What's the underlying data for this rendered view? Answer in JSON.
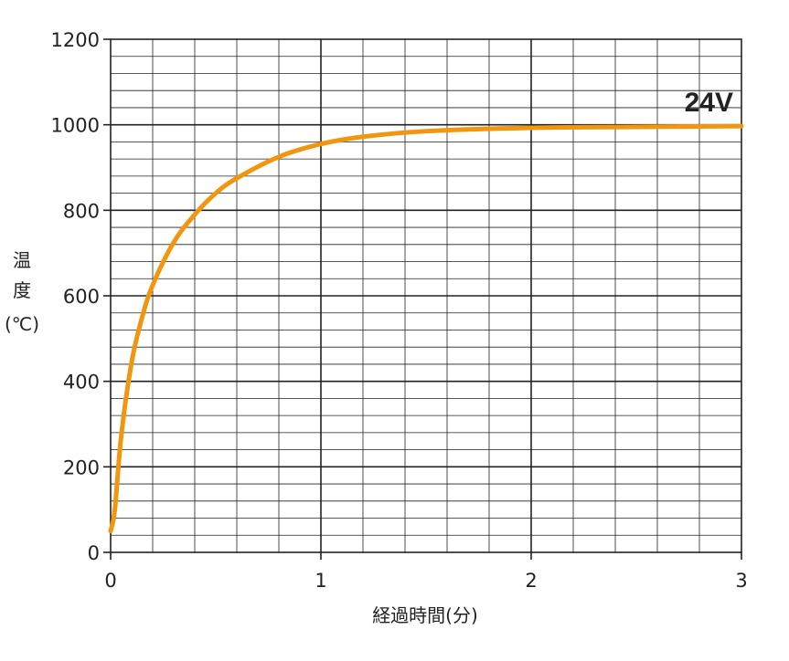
{
  "chart_data": {
    "type": "line",
    "title": "",
    "xlabel": "経過時間(分)",
    "ylabel_lines": [
      "温",
      "度",
      "(℃)"
    ],
    "xlim": [
      0,
      3
    ],
    "ylim": [
      0,
      1200
    ],
    "x_ticks": [
      0,
      1,
      2,
      3
    ],
    "y_ticks": [
      0,
      200,
      400,
      600,
      800,
      1000,
      1200
    ],
    "x_tick_labels": [
      "0",
      "1",
      "2",
      "3"
    ],
    "y_tick_labels": [
      "0",
      "200",
      "400",
      "600",
      "800",
      "1000",
      "1200"
    ],
    "grid": {
      "minor_x_step": 0.2,
      "major_x_step": 1,
      "minor_y_step": 40,
      "major_y_step": 200
    },
    "series": [
      {
        "name": "24V",
        "color": "#F0960F",
        "x": [
          0,
          0.02,
          0.05,
          0.1,
          0.15,
          0.2,
          0.3,
          0.4,
          0.5,
          0.6,
          0.8,
          1.0,
          1.2,
          1.5,
          2.0,
          2.5,
          3.0
        ],
        "y": [
          50,
          100,
          270,
          445,
          550,
          625,
          725,
          790,
          840,
          875,
          925,
          955,
          972,
          985,
          993,
          995,
          997
        ]
      }
    ]
  }
}
